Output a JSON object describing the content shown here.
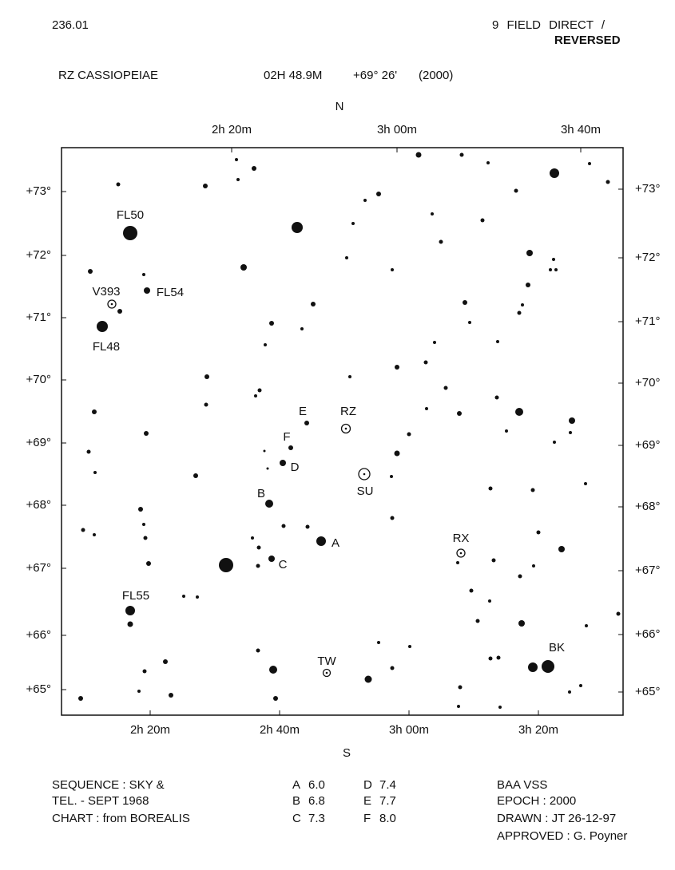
{
  "header": {
    "chart_number": "236.01",
    "field": "9 FIELD DIRECT /",
    "orientation": "REVERSED",
    "star_name": "RZ CASSIOPEIAE",
    "ra": "02H 48.9M",
    "dec": "+69° 26'",
    "epoch": "(2000)"
  },
  "chart": {
    "north": "N",
    "south": "S",
    "top_ra_ticks": [
      "2h 20m",
      "3h 00m",
      "3h 40m"
    ],
    "bottom_ra_ticks": [
      "2h 20m",
      "2h 40m",
      "3h 00m",
      "3h 20m"
    ],
    "left_dec_ticks": [
      "+73°",
      "+72°",
      "+71°",
      "+70°",
      "+69°",
      "+68°",
      "+67°",
      "+66°",
      "+65°"
    ],
    "right_dec_ticks": [
      "+73°",
      "+72°",
      "+71°",
      "+70°",
      "+69°",
      "+68°",
      "+67°",
      "+66°",
      "+65°"
    ],
    "star_labels": [
      "FL50",
      "V393",
      "FL54",
      "FL48",
      "E",
      "RZ",
      "F",
      "D",
      "SU",
      "B",
      "A",
      "C",
      "RX",
      "FL55",
      "TW",
      "BK"
    ]
  },
  "footer": {
    "sequence_source": [
      "SEQUENCE : SKY &",
      "TEL. - SEPT 1968",
      "CHART : from BOREALIS"
    ],
    "comparison_stars": [
      {
        "label": "A",
        "magnitude": "6.0"
      },
      {
        "label": "B",
        "magnitude": "6.8"
      },
      {
        "label": "C",
        "magnitude": "7.3"
      },
      {
        "label": "D",
        "magnitude": "7.4"
      },
      {
        "label": "E",
        "magnitude": "7.7"
      },
      {
        "label": "F",
        "magnitude": "8.0"
      }
    ],
    "credits": [
      "BAA VSS",
      "EPOCH : 2000",
      "DRAWN : JT 26-12-97",
      "APPROVED : G. Poyner"
    ]
  }
}
